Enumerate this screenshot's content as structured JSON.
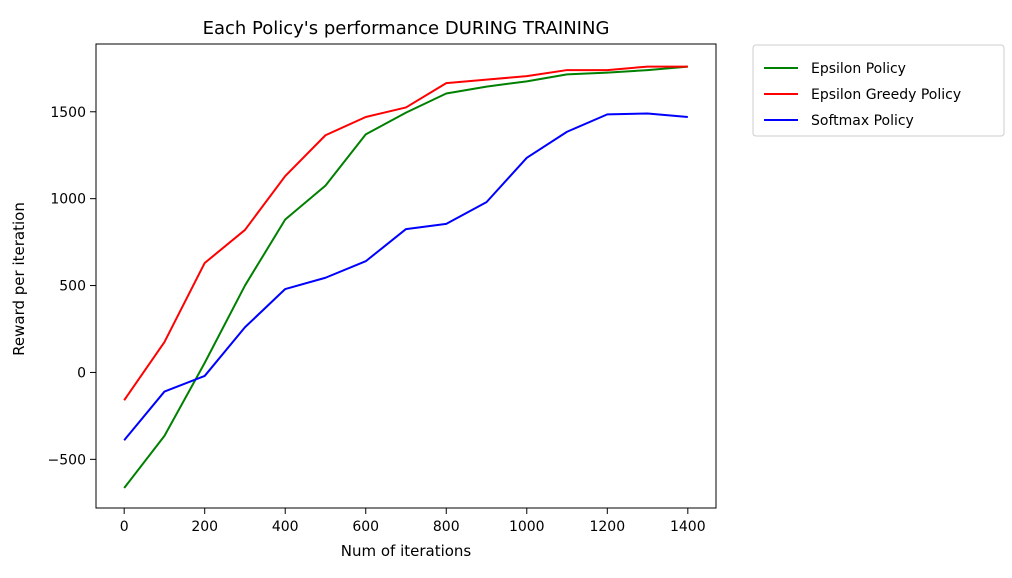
{
  "chart_data": {
    "type": "line",
    "title": "Each Policy's performance DURING TRAINING",
    "xlabel": "Num of iterations",
    "ylabel": "Reward per iteration",
    "x": [
      0,
      100,
      200,
      300,
      400,
      500,
      600,
      700,
      800,
      900,
      1000,
      1100,
      1200,
      1300,
      1400
    ],
    "xlim": [
      -70,
      1470
    ],
    "ylim": [
      -780,
      1890
    ],
    "xticks": [
      0,
      200,
      400,
      600,
      800,
      1000,
      1200,
      1400
    ],
    "xtick_labels": [
      "0",
      "200",
      "400",
      "600",
      "800",
      "1000",
      "1200",
      "1400"
    ],
    "yticks": [
      -500,
      0,
      500,
      1000,
      1500
    ],
    "ytick_labels": [
      "−500",
      "0",
      "500",
      "1000",
      "1500"
    ],
    "grid": false,
    "legend_position": "outside-top-right",
    "series": [
      {
        "name": "Epsilon Policy",
        "color": "#008000",
        "values": [
          -665,
          -365,
          55,
          500,
          880,
          1075,
          1370,
          1495,
          1605,
          1645,
          1675,
          1715,
          1725,
          1740,
          1760
        ]
      },
      {
        "name": "Epsilon Greedy Policy",
        "color": "#ff0000",
        "values": [
          -160,
          175,
          630,
          820,
          1130,
          1365,
          1470,
          1525,
          1665,
          1685,
          1705,
          1740,
          1740,
          1760,
          1760
        ]
      },
      {
        "name": "Softmax Policy",
        "color": "#0000ff",
        "values": [
          -390,
          -110,
          -20,
          260,
          480,
          545,
          640,
          825,
          855,
          980,
          1235,
          1385,
          1485,
          1490,
          1470
        ]
      }
    ]
  }
}
